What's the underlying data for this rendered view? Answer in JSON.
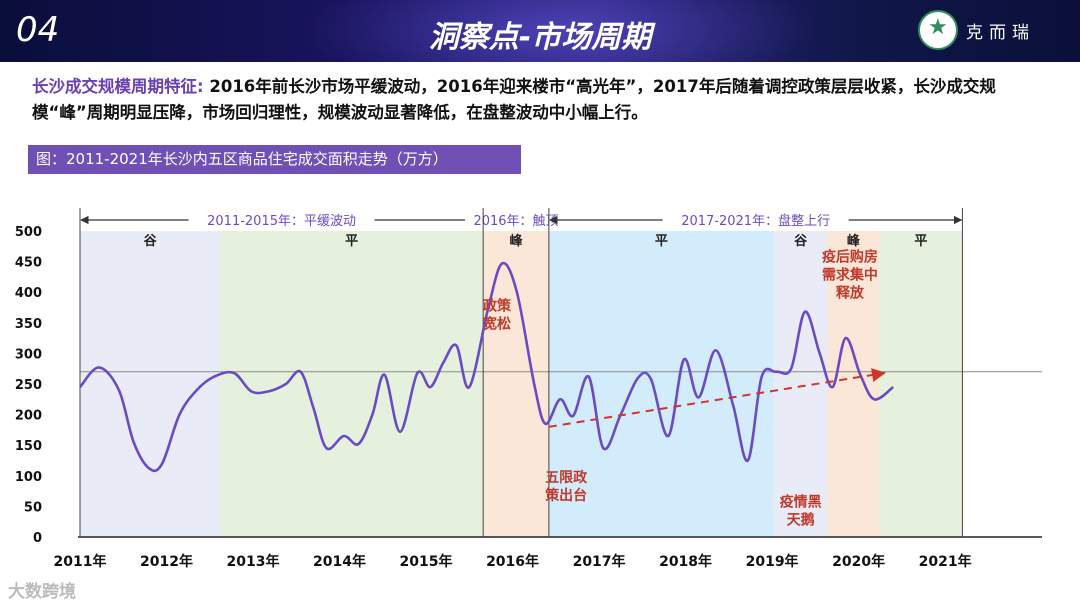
{
  "header": {
    "section_number": "04",
    "title": "洞察点-市场周期",
    "brand": "克而瑞"
  },
  "summary": {
    "lead": "长沙成交规模周期特征:",
    "text": "2016年前长沙市场平缓波动，2016年迎来楼市“高光年”，2017年后随着调控政策层层收紧，长沙成交规模“峰”周期明显压降，市场回归理性，规模波动显著降低，在盘整波动中小幅上行。"
  },
  "caption": "图：2011-2021年长沙内五区商品住宅成交面积走势（万方）",
  "watermark": "大数跨境",
  "colors": {
    "line": "#6a4bc4",
    "trend": "#d0352b",
    "annotation": "#c0392b",
    "band_blue": "#e9ecf7",
    "band_green": "#e6f1dd",
    "band_orange": "#fbe7d7",
    "band_cyan": "#d3ecfb"
  },
  "chart_data": {
    "type": "line",
    "title": "2011-2021年长沙内五区商品住宅成交面积走势（万方）",
    "ylim": [
      0,
      500
    ],
    "yticks": [
      0,
      50,
      100,
      150,
      200,
      250,
      300,
      350,
      400,
      450,
      500
    ],
    "x_range": [
      2011.0,
      2022.12
    ],
    "xticks": [
      {
        "label": "2011年",
        "x": 2011.0
      },
      {
        "label": "2012年",
        "x": 2012.0
      },
      {
        "label": "2013年",
        "x": 2013.0
      },
      {
        "label": "2014年",
        "x": 2014.0
      },
      {
        "label": "2015年",
        "x": 2015.0
      },
      {
        "label": "2016年",
        "x": 2016.0
      },
      {
        "label": "2017年",
        "x": 2017.0
      },
      {
        "label": "2018年",
        "x": 2018.0
      },
      {
        "label": "2019年",
        "x": 2019.0
      },
      {
        "label": "2020年",
        "x": 2020.0
      },
      {
        "label": "2021年",
        "x": 2021.0
      }
    ],
    "reference_line": 270,
    "series": [
      {
        "values": [
          [
            2011.0,
            245
          ],
          [
            2011.22,
            277
          ],
          [
            2011.45,
            240
          ],
          [
            2011.62,
            155
          ],
          [
            2011.8,
            112
          ],
          [
            2011.95,
            120
          ],
          [
            2012.15,
            200
          ],
          [
            2012.35,
            240
          ],
          [
            2012.55,
            262
          ],
          [
            2012.78,
            268
          ],
          [
            2012.98,
            238
          ],
          [
            2013.18,
            238
          ],
          [
            2013.38,
            250
          ],
          [
            2013.55,
            270
          ],
          [
            2013.7,
            210
          ],
          [
            2013.85,
            145
          ],
          [
            2014.05,
            165
          ],
          [
            2014.22,
            152
          ],
          [
            2014.38,
            200
          ],
          [
            2014.52,
            265
          ],
          [
            2014.7,
            172
          ],
          [
            2014.9,
            268
          ],
          [
            2015.05,
            245
          ],
          [
            2015.2,
            285
          ],
          [
            2015.35,
            313
          ],
          [
            2015.5,
            245
          ],
          [
            2015.72,
            375
          ],
          [
            2015.88,
            447
          ],
          [
            2016.05,
            400
          ],
          [
            2016.25,
            250
          ],
          [
            2016.38,
            185
          ],
          [
            2016.55,
            225
          ],
          [
            2016.7,
            198
          ],
          [
            2016.88,
            262
          ],
          [
            2017.05,
            145
          ],
          [
            2017.25,
            200
          ],
          [
            2017.45,
            260
          ],
          [
            2017.6,
            258
          ],
          [
            2017.8,
            165
          ],
          [
            2017.98,
            290
          ],
          [
            2018.15,
            228
          ],
          [
            2018.35,
            305
          ],
          [
            2018.55,
            215
          ],
          [
            2018.72,
            125
          ],
          [
            2018.88,
            262
          ],
          [
            2019.05,
            270
          ],
          [
            2019.22,
            275
          ],
          [
            2019.38,
            368
          ],
          [
            2019.55,
            300
          ],
          [
            2019.7,
            245
          ],
          [
            2019.85,
            325
          ],
          [
            2020.02,
            265
          ],
          [
            2020.18,
            225
          ],
          [
            2020.4,
            245
          ]
        ]
      }
    ],
    "trendline": [
      [
        2016.42,
        180
      ],
      [
        2020.3,
        268
      ]
    ],
    "bands": [
      {
        "label": "谷",
        "from": 2011.0,
        "to": 2012.62
      },
      {
        "label": "平",
        "from": 2012.62,
        "to": 2015.66
      },
      {
        "label": "峰",
        "from": 2015.66,
        "to": 2016.42
      },
      {
        "label": "平",
        "from": 2016.42,
        "to": 2019.02
      },
      {
        "label": "谷",
        "from": 2019.02,
        "to": 2019.64
      },
      {
        "label": "峰",
        "from": 2019.64,
        "to": 2020.24
      },
      {
        "label": "平",
        "from": 2020.24,
        "to": 2021.2
      }
    ],
    "periods": [
      {
        "label": "2011-2015年：平缓波动",
        "from": 2011.0,
        "to": 2015.66
      },
      {
        "label": "2016年：触顶",
        "from": 2015.66,
        "to": 2016.42
      },
      {
        "label": "2017-2021年：盘整上行",
        "from": 2016.42,
        "to": 2021.2
      }
    ],
    "annotations": [
      {
        "text": "政策\n宽松",
        "x": 2015.82,
        "y": 370
      },
      {
        "text": "五限政\n策出台",
        "x": 2016.62,
        "y": 90
      },
      {
        "text": "疫情黑\n天鹅",
        "x": 2019.33,
        "y": 50
      },
      {
        "text": "疫后购房\n需求集中\n释放",
        "x": 2019.9,
        "y": 450
      }
    ]
  }
}
